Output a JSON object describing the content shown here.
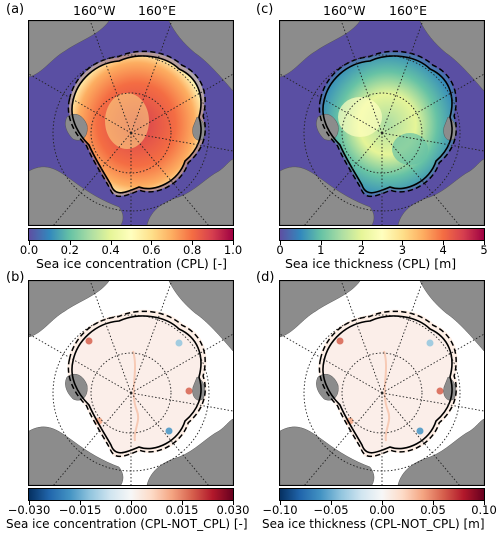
{
  "panels": [
    {
      "label": "(a)",
      "lon_left": "160°W",
      "lon_right": "160°E",
      "kind": "conc",
      "ticks": [
        "0.0",
        "0.2",
        "0.4",
        "0.6",
        "0.8",
        "1.0"
      ],
      "title": "Sea ice concentration (CPL)  [-]",
      "cmap": "spectral"
    },
    {
      "label": "(c)",
      "lon_left": "160°W",
      "lon_right": "160°E",
      "kind": "thick",
      "ticks": [
        "0",
        "1",
        "2",
        "3",
        "4",
        "5"
      ],
      "title": "Sea ice thickness (CPL)  [m]",
      "cmap": "spectral"
    },
    {
      "label": "(b)",
      "kind": "diffc",
      "ticks": [
        "−0.030",
        "−0.015",
        "0.000",
        "0.015",
        "0.030"
      ],
      "title": "Sea ice concentration (CPL-NOT_CPL) [-]",
      "cmap": "diverging"
    },
    {
      "label": "(d)",
      "kind": "difft",
      "ticks": [
        "−0.10",
        "−0.05",
        "0.00",
        "0.05",
        "0.10"
      ],
      "title": "Sea ice thickness (CPL-NOT_CPL)  [m]",
      "cmap": "diverging"
    }
  ],
  "colors": {
    "land": "#8c8c8c",
    "ocean_ice_free": "#5a4fa3",
    "spectral": [
      "#5e4fa2",
      "#3288bd",
      "#66c2a5",
      "#abdda4",
      "#e6f598",
      "#ffffbf",
      "#fee08b",
      "#fdae61",
      "#f46d43",
      "#d53e4f",
      "#9e0142"
    ],
    "diverging": [
      "#053061",
      "#2166ac",
      "#4393c3",
      "#92c5de",
      "#d1e5f0",
      "#f7f7f7",
      "#fddbc7",
      "#f4a582",
      "#d6604d",
      "#b2182b",
      "#67001f"
    ]
  }
}
